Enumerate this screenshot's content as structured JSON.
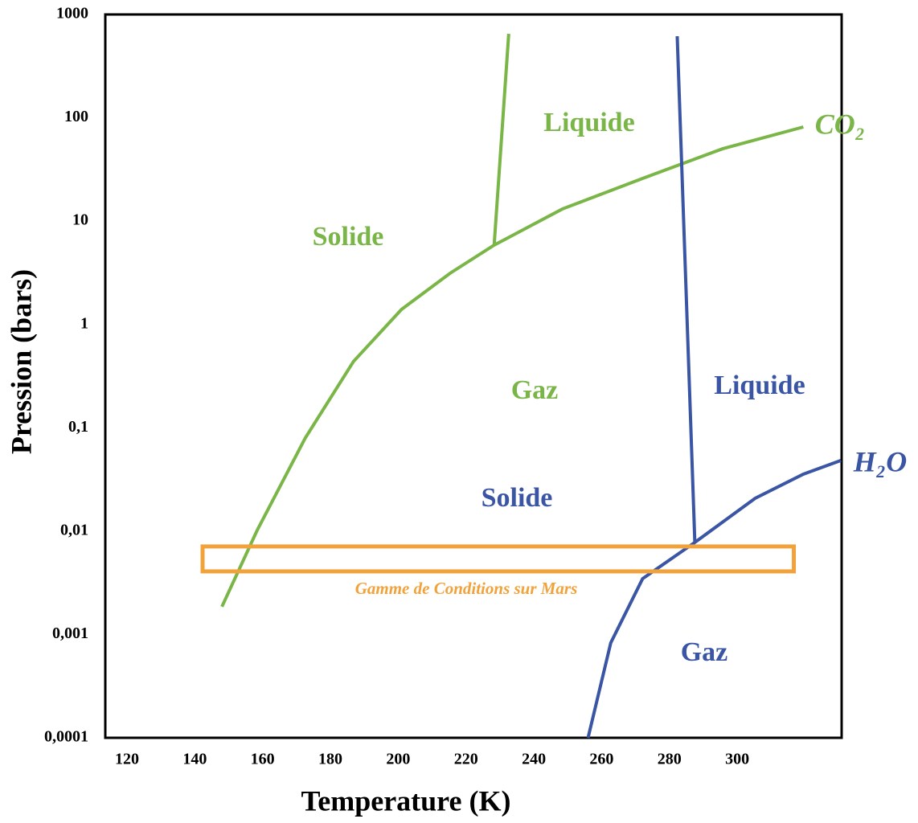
{
  "chart_data": {
    "type": "line",
    "xlabel": "Temperature (K)",
    "ylabel": "Pression (bars)",
    "xlim": [
      113.6,
      330.8
    ],
    "xticks": [
      120,
      140,
      160,
      180,
      200,
      220,
      240,
      260,
      280,
      300
    ],
    "ylim": [
      0.0001,
      1000
    ],
    "log_y": true,
    "yticks": [
      {
        "value": 0.0001,
        "label": "0,0001"
      },
      {
        "value": 0.001,
        "label": "0,001"
      },
      {
        "value": 0.01,
        "label": "0,01"
      },
      {
        "value": 0.1,
        "label": "0,1"
      },
      1,
      10,
      100,
      1000
    ],
    "grid": false,
    "series": [
      {
        "name": "CO₂",
        "color": "#7ab547",
        "x": [
          148.0,
          158.4,
          172.6,
          186.8,
          201.0,
          215.3,
          228.3,
          248.4,
          272.1,
          295.8,
          319.5
        ],
        "values": [
          0.00186,
          0.0102,
          0.0798,
          0.438,
          1.4,
          3.13,
          5.86,
          13.1,
          25.9,
          50.3,
          81.5
        ]
      },
      {
        "name": "CO₂ fusion",
        "color": "#7ab547",
        "x": [
          228.3,
          232.6
        ],
        "values": [
          5.86,
          650
        ]
      },
      {
        "name": "H₂O",
        "color": "#3a55a4",
        "x": [
          256.0,
          262.7,
          272.1,
          287.5,
          305.3,
          319.5,
          330.6
        ],
        "values": [
          0.0001,
          0.00083,
          0.00347,
          0.00778,
          0.0208,
          0.0356,
          0.0483
        ]
      },
      {
        "name": "H₂O fusion",
        "color": "#3a55a4",
        "x": [
          282.3,
          287.5
        ],
        "values": [
          616,
          0.00778
        ]
      }
    ],
    "box": {
      "label": "Gamme de Conditions sur Mars",
      "color": "#f2a23a",
      "x": [
        142.3,
        316.7
      ],
      "y": [
        0.00408,
        0.00711
      ]
    },
    "annotations": [
      {
        "text": "Liquide",
        "color": "#7ab547"
      },
      {
        "text": "Solide",
        "color": "#7ab547"
      },
      {
        "text": "Gaz",
        "color": "#7ab547"
      },
      {
        "text": "CO₂",
        "color": "#7ab547"
      },
      {
        "text": "Liquide",
        "color": "#3a55a4"
      },
      {
        "text": "Solide",
        "color": "#3a55a4"
      },
      {
        "text": "Gaz",
        "color": "#3a55a4"
      },
      {
        "text": "H₂O",
        "color": "#3a55a4"
      }
    ]
  }
}
